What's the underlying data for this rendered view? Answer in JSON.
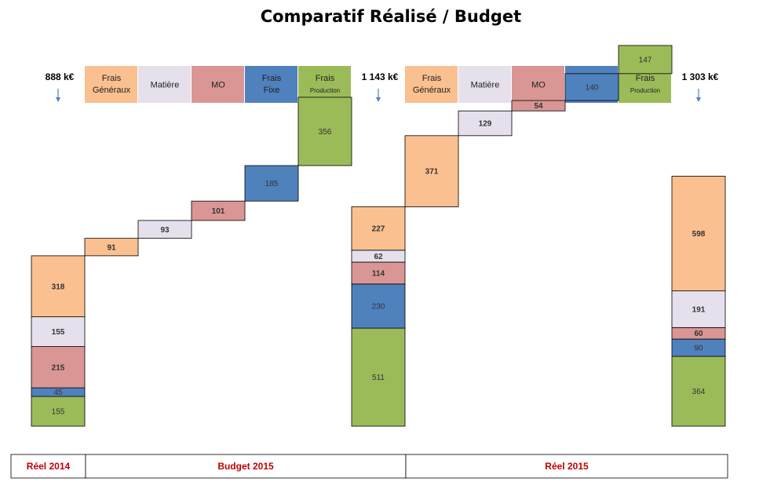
{
  "title": "Comparatif  Réalisé / Budget",
  "colors": {
    "frais_generaux": "#fac090",
    "matiere": "#e6e0ec",
    "mo": "#da9694",
    "frais_fixe": "#4f81bd",
    "frais_production": "#9bbb59",
    "arrow": "#4f81bd",
    "period_text": "#c00000"
  },
  "chart_data": {
    "type": "bar",
    "subtype": "waterfall-stacked",
    "title": "Comparatif  Réalisé / Budget",
    "categories_order": [
      "frais_generaux",
      "matiere",
      "mo",
      "frais_fixe",
      "frais_production"
    ],
    "legend_groups": [
      {
        "items": [
          {
            "key": "frais_generaux",
            "lines": [
              "Frais",
              "Généraux"
            ]
          },
          {
            "key": "matiere",
            "lines": [
              "Matière"
            ]
          },
          {
            "key": "mo",
            "lines": [
              "MO"
            ]
          },
          {
            "key": "frais_fixe",
            "lines": [
              "Frais",
              "Fixe"
            ]
          },
          {
            "key": "frais_production",
            "lines": [
              "Frais",
              "Production"
            ]
          }
        ]
      },
      {
        "items": [
          {
            "key": "frais_generaux",
            "lines": [
              "Frais",
              "Généraux"
            ]
          },
          {
            "key": "matiere",
            "lines": [
              "Matière"
            ]
          },
          {
            "key": "mo",
            "lines": [
              "MO"
            ]
          },
          {
            "key": "frais_fixe",
            "lines": [
              "Frais",
              "Fixe"
            ]
          },
          {
            "key": "frais_production",
            "lines": [
              "Frais",
              "Production"
            ]
          }
        ]
      }
    ],
    "totals": [
      {
        "label": "888 k€",
        "value": 888,
        "stack": [
          {
            "key": "frais_production",
            "value": 155
          },
          {
            "key": "frais_fixe",
            "value": 45
          },
          {
            "key": "mo",
            "value": 215
          },
          {
            "key": "matiere",
            "value": 155
          },
          {
            "key": "frais_generaux",
            "value": 318
          }
        ]
      },
      {
        "label": "1 143 k€",
        "value": 1143,
        "stack": [
          {
            "key": "frais_production",
            "value": 511
          },
          {
            "key": "frais_fixe",
            "value": 230
          },
          {
            "key": "mo",
            "value": 114
          },
          {
            "key": "matiere",
            "value": 62
          },
          {
            "key": "frais_generaux",
            "value": 227
          }
        ]
      },
      {
        "label": "1 303 k€",
        "value": 1303,
        "stack": [
          {
            "key": "frais_production",
            "value": 364
          },
          {
            "key": "frais_fixe",
            "value": 90
          },
          {
            "key": "mo",
            "value": 60
          },
          {
            "key": "matiere",
            "value": 191
          },
          {
            "key": "frais_generaux",
            "value": 598
          }
        ]
      }
    ],
    "deltas": [
      [
        {
          "key": "frais_generaux",
          "value": 91
        },
        {
          "key": "matiere",
          "value": 93
        },
        {
          "key": "mo",
          "value": 101
        },
        {
          "key": "frais_fixe",
          "value": 185
        },
        {
          "key": "frais_production",
          "value": 356
        }
      ],
      [
        {
          "key": "frais_generaux",
          "value": 371
        },
        {
          "key": "matiere",
          "value": 129
        },
        {
          "key": "mo",
          "value": 54
        },
        {
          "key": "frais_fixe",
          "value": 140
        },
        {
          "key": "frais_production",
          "value": 147
        }
      ]
    ],
    "periods": [
      "Réel 2014",
      "Budget 2015",
      "Réel 2015"
    ]
  }
}
